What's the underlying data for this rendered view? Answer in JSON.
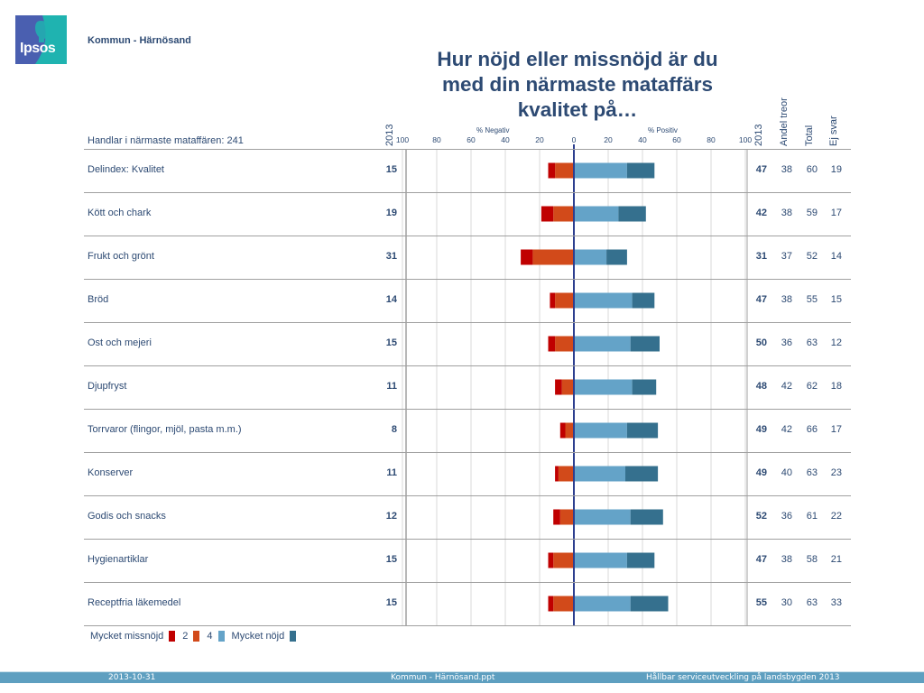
{
  "header": {
    "logo_text": "Ipsos",
    "brand": "Kommun - Härnösand",
    "title_lines": [
      "Hur nöjd eller missnöjd är du",
      "med din närmaste mataffärs",
      "kvalitet på…"
    ],
    "base_label": "Handlar i närmaste mataffären: 241"
  },
  "columns": {
    "neg_year": "2013",
    "pos_year": "2013",
    "andel_treor": "Andel treor",
    "total": "Total",
    "ej_svar": "Ej svar"
  },
  "axis": {
    "neg_label": "% Negativ",
    "pos_label": "% Positiv",
    "ticks": [
      "100",
      "80",
      "60",
      "40",
      "20",
      "0",
      "20",
      "40",
      "60",
      "80",
      "100"
    ]
  },
  "colors": {
    "mycket_missnojd": "#c00000",
    "two": "#d24a1a",
    "four": "#64a3c8",
    "mycket_nojd": "#35708e",
    "zero_line": "#2d3f8f",
    "text": "#2d4a73"
  },
  "chart_data": {
    "type": "bar",
    "orientation": "horizontal-diverging-stacked",
    "title": "Hur nöjd eller missnöjd är du med din närmaste mataffärs kvalitet på…",
    "xlabel_negative": "% Negativ",
    "xlabel_positive": "% Positiv",
    "xlim": [
      -100,
      100
    ],
    "grid": true,
    "legend_position": "bottom-left",
    "categories": [
      "Delindex: Kvalitet",
      "Kött och chark",
      "Frukt och grönt",
      "Bröd",
      "Ost och mejeri",
      "Djupfryst",
      "Torrvaror (flingor, mjöl, pasta m.m.)",
      "Konserver",
      "Godis och snacks",
      "Hygienartiklar",
      "Receptfria läkemedel"
    ],
    "series": [
      {
        "name": "Mycket missnöjd",
        "side": "negative",
        "values": [
          4,
          7,
          7,
          3,
          4,
          4,
          3,
          2,
          4,
          3,
          3
        ]
      },
      {
        "name": "2",
        "side": "negative",
        "values": [
          11,
          12,
          24,
          11,
          11,
          7,
          5,
          9,
          8,
          12,
          12
        ]
      },
      {
        "name": "4",
        "side": "positive",
        "values": [
          31,
          26,
          19,
          34,
          33,
          34,
          31,
          30,
          33,
          31,
          33
        ]
      },
      {
        "name": "Mycket nöjd",
        "side": "positive",
        "values": [
          16,
          16,
          12,
          13,
          17,
          14,
          18,
          19,
          19,
          16,
          22
        ]
      }
    ],
    "neg_2013": [
      15,
      19,
      31,
      14,
      15,
      11,
      8,
      11,
      12,
      15,
      15
    ],
    "pos_2013": [
      47,
      42,
      31,
      47,
      50,
      48,
      49,
      49,
      52,
      47,
      55
    ],
    "andel_treor": [
      38,
      38,
      37,
      38,
      36,
      42,
      42,
      40,
      36,
      38,
      30
    ],
    "total": [
      60,
      59,
      52,
      55,
      63,
      62,
      66,
      63,
      61,
      58,
      63
    ],
    "ej_svar": [
      19,
      17,
      14,
      15,
      12,
      18,
      17,
      23,
      22,
      21,
      33
    ]
  },
  "legend": {
    "items": [
      "Mycket missnöjd",
      "2",
      "4",
      "Mycket nöjd"
    ]
  },
  "footer": {
    "date": "2013-10-31",
    "file": "Kommun - Härnösand.ppt",
    "project": "Hållbar serviceutveckling på landsbygden 2013"
  }
}
